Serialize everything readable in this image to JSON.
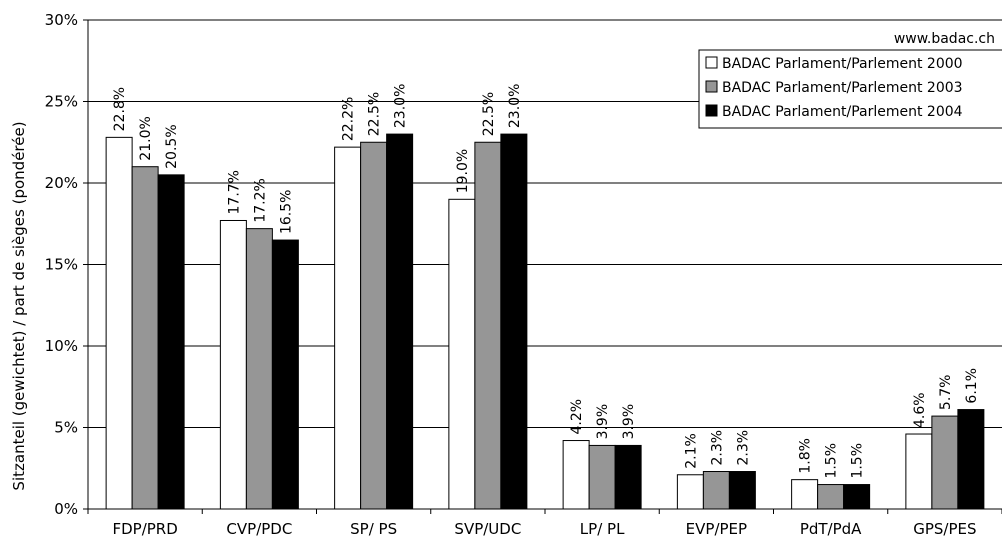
{
  "source_note": "www.badac.ch",
  "chart_data": {
    "type": "bar",
    "ylabel": "Sitzanteil (gewichtet) / part de sièges (pondérée)",
    "xlabel": "",
    "ylim": [
      0,
      30
    ],
    "y_ticks": [
      0,
      5,
      10,
      15,
      20,
      25,
      30
    ],
    "y_tick_labels": [
      "0%",
      "5%",
      "10%",
      "15%",
      "20%",
      "25%",
      "30%"
    ],
    "grid": true,
    "legend_position": "top-right",
    "categories": [
      "FDP/PRD",
      "CVP/PDC",
      "SP/ PS",
      "SVP/UDC",
      "LP/ PL",
      "EVP/PEP",
      "PdT/PdA",
      "GPS/PES"
    ],
    "series": [
      {
        "name": "BADAC Parlament/Parlement 2000",
        "color": "#ffffff",
        "values": [
          22.8,
          17.7,
          22.2,
          19.0,
          4.2,
          2.1,
          1.8,
          4.6
        ],
        "labels": [
          "22.8%",
          "17.7%",
          "22.2%",
          "19.0%",
          "4.2%",
          "2.1%",
          "1.8%",
          "4.6%"
        ]
      },
      {
        "name": "BADAC Parlament/Parlement 2003",
        "color": "#969696",
        "values": [
          21.0,
          17.2,
          22.5,
          22.5,
          3.9,
          2.3,
          1.5,
          5.7
        ],
        "labels": [
          "21.0%",
          "17.2%",
          "22.5%",
          "22.5%",
          "3.9%",
          "2.3%",
          "1.5%",
          "5.7%"
        ]
      },
      {
        "name": "BADAC Parlament/Parlement 2004",
        "color": "#000000",
        "values": [
          20.5,
          16.5,
          23.0,
          23.0,
          3.9,
          2.3,
          1.5,
          6.1
        ],
        "labels": [
          "20.5%",
          "16.5%",
          "23.0%",
          "23.0%",
          "3.9%",
          "2.3%",
          "1.5%",
          "6.1%"
        ]
      }
    ]
  }
}
